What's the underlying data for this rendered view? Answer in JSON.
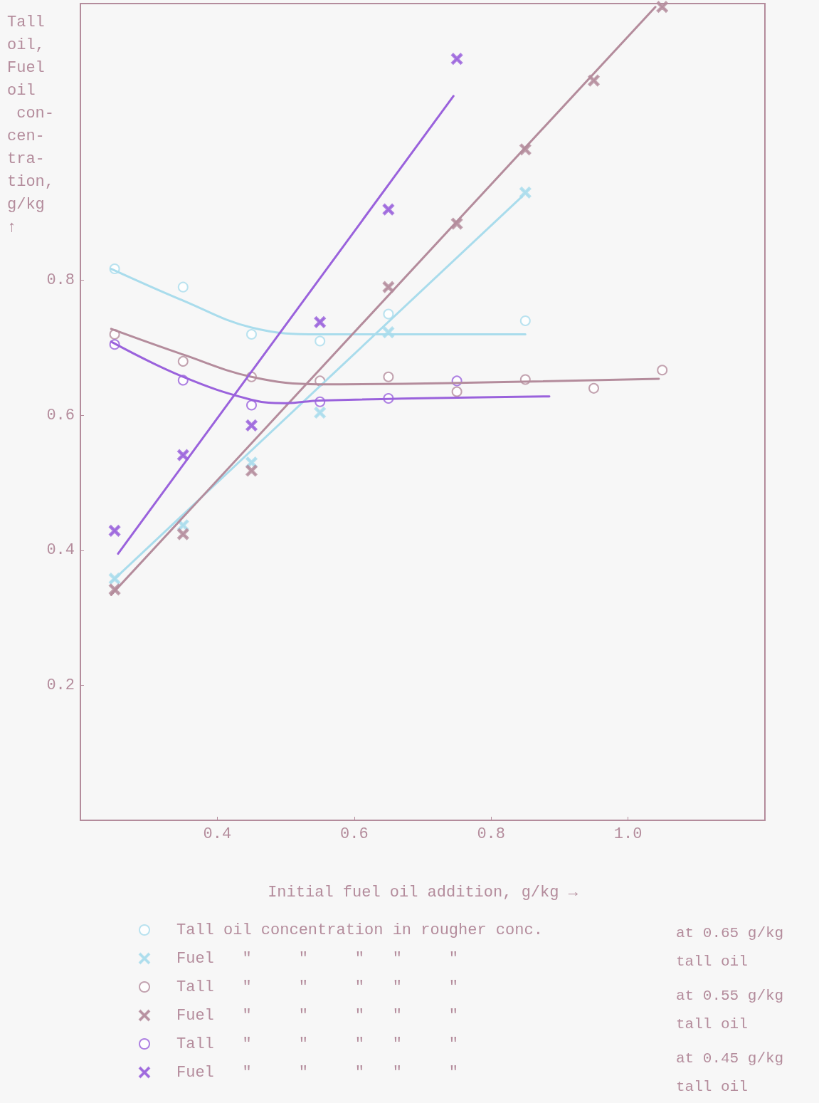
{
  "chart_data": {
    "type": "scatter",
    "xlabel": "Initial fuel oil addition, g/kg →",
    "ylabel": "Tall\noil,\nFuel\noil\n con-\ncen-\ntra-\ntion,\ng/kg\n↑",
    "xlim": [
      0.2,
      1.2
    ],
    "xticks": [
      0.4,
      0.6,
      0.8,
      {
        "value": 1,
        "label": "1.0"
      }
    ],
    "ylim": [
      0,
      1.21
    ],
    "yticks": [
      0.2,
      0.4,
      0.6,
      0.8
    ],
    "grid": false,
    "legend": "bottom",
    "annotations": [
      "at 0.65 g/kg\ntall oil",
      "at 0.55 g/kg\ntall oil",
      "at 0.45 g/kg\ntall oil"
    ],
    "series": [
      {
        "name": "Tall oil concentration in rougher conc.",
        "color": "#a9dcec",
        "marker": "circle",
        "x": [
          0.25,
          0.35,
          0.45,
          0.55,
          0.65,
          0.85
        ],
        "values": [
          0.817,
          0.79,
          0.72,
          0.71,
          0.75,
          0.74
        ]
      },
      {
        "name": "Fuel   \"     \"     \"   \"     \"",
        "color": "#a9dcec",
        "marker": "cross",
        "x": [
          0.25,
          0.35,
          0.45,
          0.55,
          0.65,
          0.85
        ],
        "values": [
          0.358,
          0.437,
          0.53,
          0.604,
          0.723,
          0.93
        ]
      },
      {
        "name": "Tall   \"     \"     \"   \"     \"",
        "color": "#b48c9c",
        "marker": "circle",
        "x": [
          0.25,
          0.35,
          0.45,
          0.55,
          0.65,
          0.75,
          0.85,
          0.95,
          1.05
        ],
        "values": [
          0.72,
          0.68,
          0.657,
          0.651,
          0.657,
          0.635,
          0.653,
          0.64,
          0.667
        ]
      },
      {
        "name": "Fuel   \"     \"     \"   \"     \"",
        "color": "#b48c9c",
        "marker": "cross",
        "x": [
          0.25,
          0.35,
          0.45,
          0.65,
          0.75,
          0.85,
          0.95,
          1.05
        ],
        "values": [
          0.342,
          0.424,
          0.518,
          0.79,
          0.884,
          0.994,
          1.096,
          1.205
        ]
      },
      {
        "name": "Tall   \"     \"     \"   \"     \"",
        "color": "#9a62dc",
        "marker": "circle",
        "x": [
          0.25,
          0.35,
          0.45,
          0.55,
          0.65,
          0.75
        ],
        "values": [
          0.705,
          0.652,
          0.615,
          0.62,
          0.625,
          0.651
        ]
      },
      {
        "name": "Fuel   \"     \"     \"   \"     \"",
        "color": "#9a62dc",
        "marker": "cross",
        "x": [
          0.25,
          0.35,
          0.45,
          0.55,
          0.65,
          0.75
        ],
        "values": [
          0.429,
          0.541,
          0.585,
          0.738,
          0.905,
          1.128
        ]
      },
      {
        "type": "line",
        "color": "#a9dcec",
        "marker": "none",
        "x": [
          0.245,
          0.35,
          0.45,
          0.55,
          0.65,
          0.85
        ],
        "values": [
          0.817,
          0.77,
          0.73,
          0.72,
          0.72,
          0.72
        ]
      },
      {
        "type": "line",
        "color": "#a9dcec",
        "marker": "none",
        "x": [
          0.245,
          0.845
        ],
        "values": [
          0.353,
          0.924
        ]
      },
      {
        "type": "line",
        "color": "#b48c9c",
        "marker": "none",
        "x": [
          0.245,
          0.35,
          0.45,
          0.55,
          0.75,
          1.045
        ],
        "values": [
          0.728,
          0.69,
          0.657,
          0.646,
          0.648,
          0.654
        ]
      },
      {
        "type": "line",
        "color": "#b48c9c",
        "marker": "none",
        "x": [
          0.245,
          1.04
        ],
        "values": [
          0.334,
          1.205
        ]
      },
      {
        "type": "line",
        "color": "#9a62dc",
        "marker": "none",
        "x": [
          0.245,
          0.35,
          0.45,
          0.5,
          0.55,
          0.885
        ],
        "values": [
          0.709,
          0.657,
          0.623,
          0.618,
          0.622,
          0.628
        ]
      },
      {
        "type": "line",
        "color": "#9a62dc",
        "marker": "none",
        "x": [
          0.255,
          0.745
        ],
        "values": [
          0.395,
          1.073
        ]
      }
    ]
  }
}
